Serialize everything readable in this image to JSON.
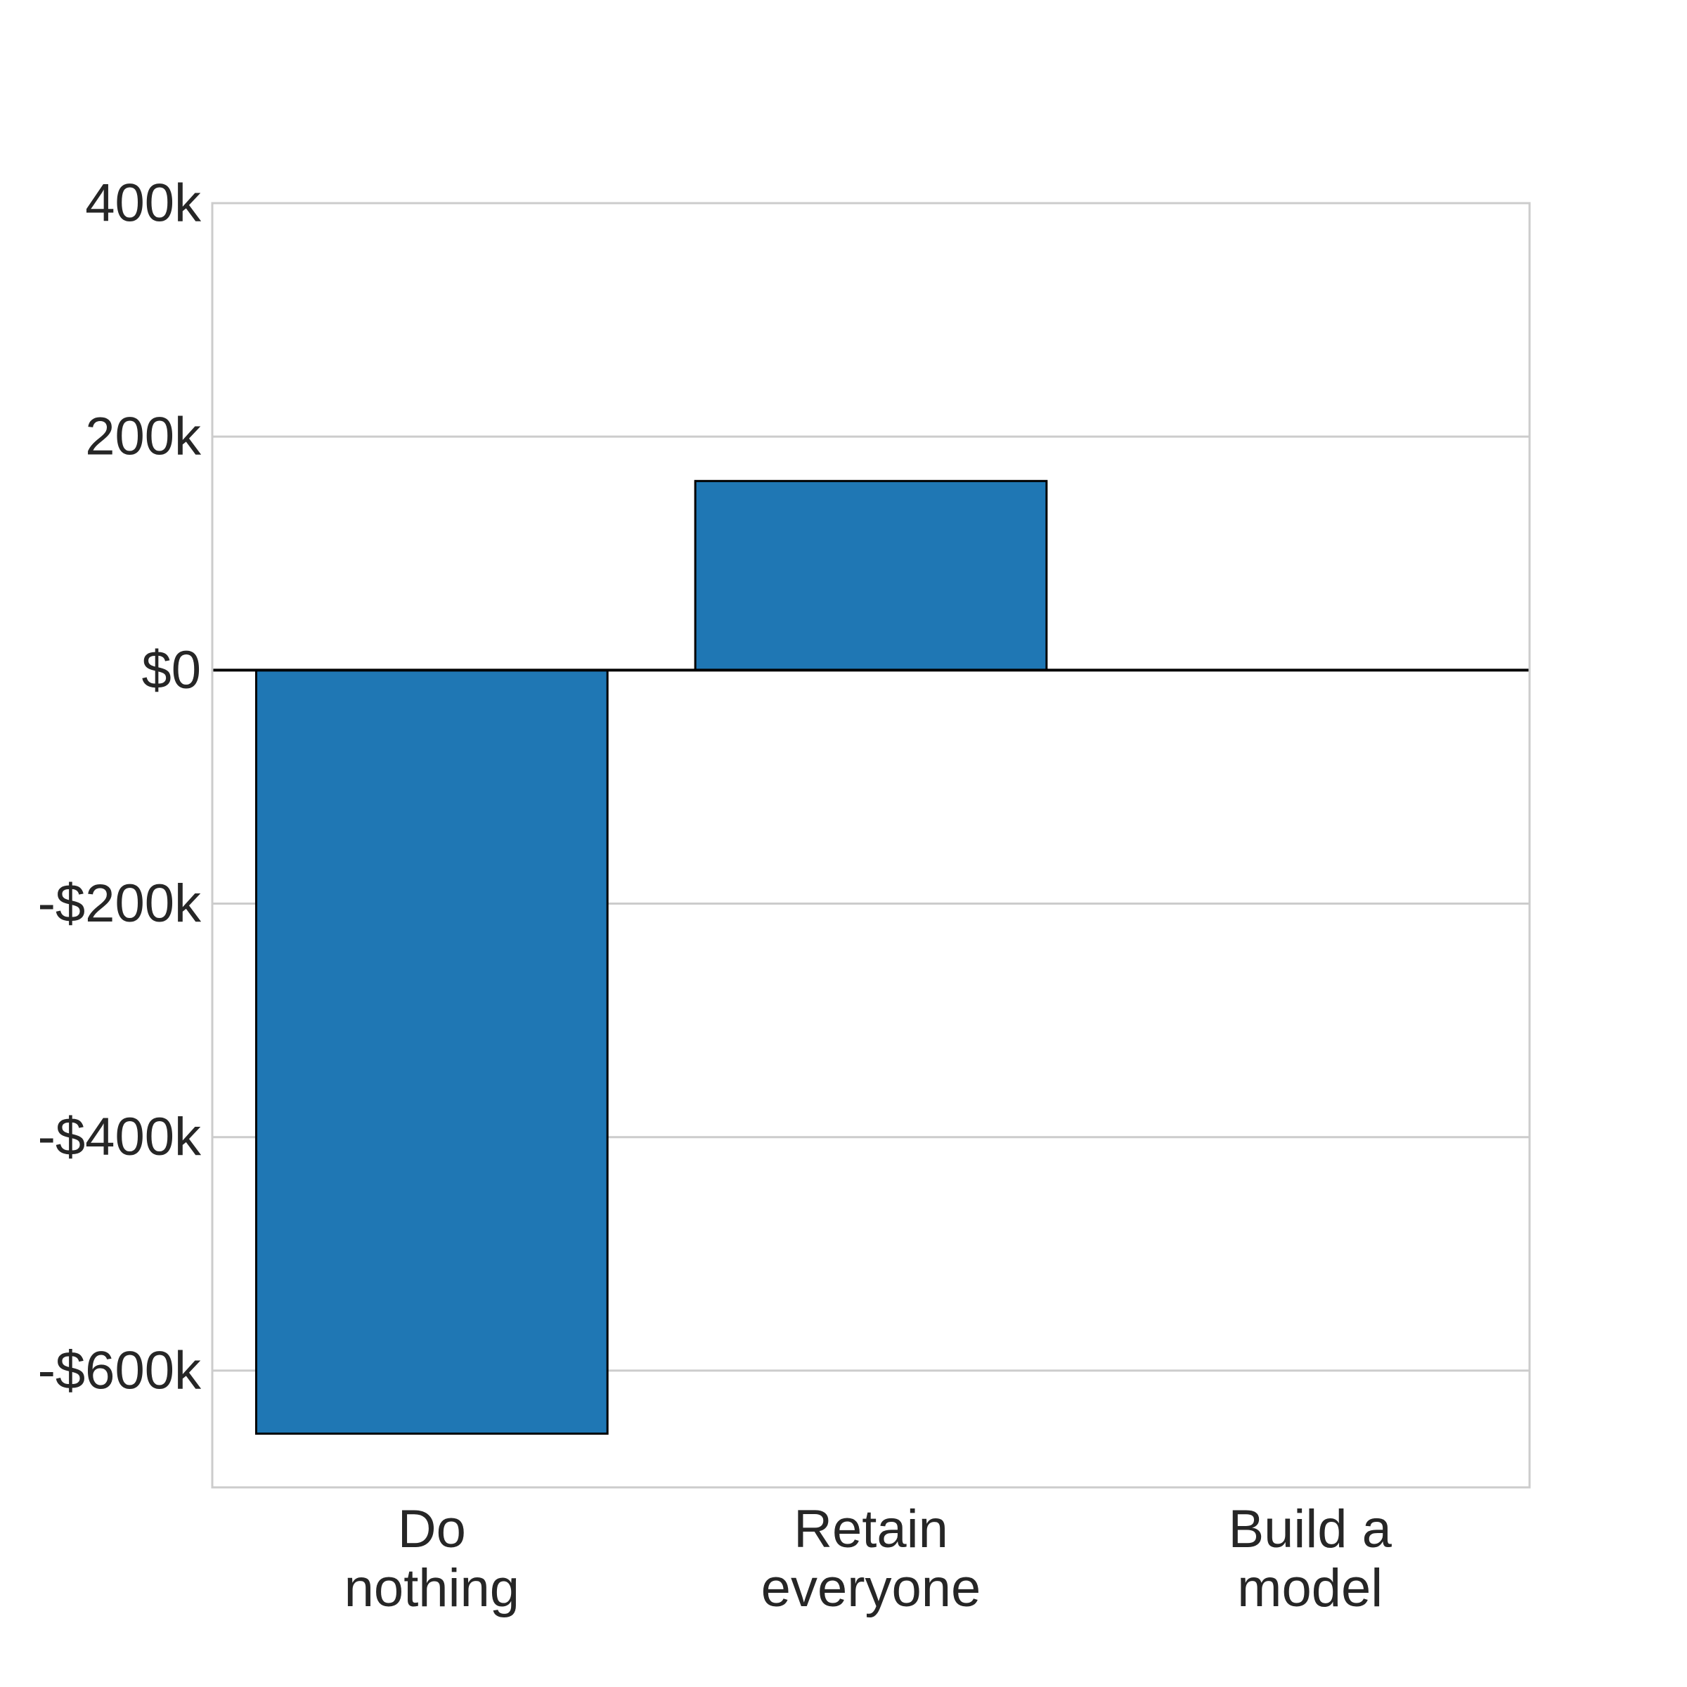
{
  "chart_data": {
    "type": "bar",
    "categories": [
      [
        "Do",
        "nothing"
      ],
      [
        "Retain",
        "everyone"
      ],
      [
        "Build a",
        "model"
      ]
    ],
    "values": [
      -654000,
      162000,
      0
    ],
    "ylim": [
      -700000,
      400000
    ],
    "yticks": [
      {
        "value": 400000,
        "label": "400k"
      },
      {
        "value": 200000,
        "label": "200k"
      },
      {
        "value": 0,
        "label": "$0"
      },
      {
        "value": -200000,
        "label": "-$200k"
      },
      {
        "value": -400000,
        "label": "-$400k"
      },
      {
        "value": -600000,
        "label": "-$600k"
      }
    ],
    "grid": true,
    "bar_color": "#1f77b4",
    "edge_color": "#000000",
    "grid_color": "#cccccc",
    "title": "",
    "xlabel": "",
    "ylabel": ""
  }
}
